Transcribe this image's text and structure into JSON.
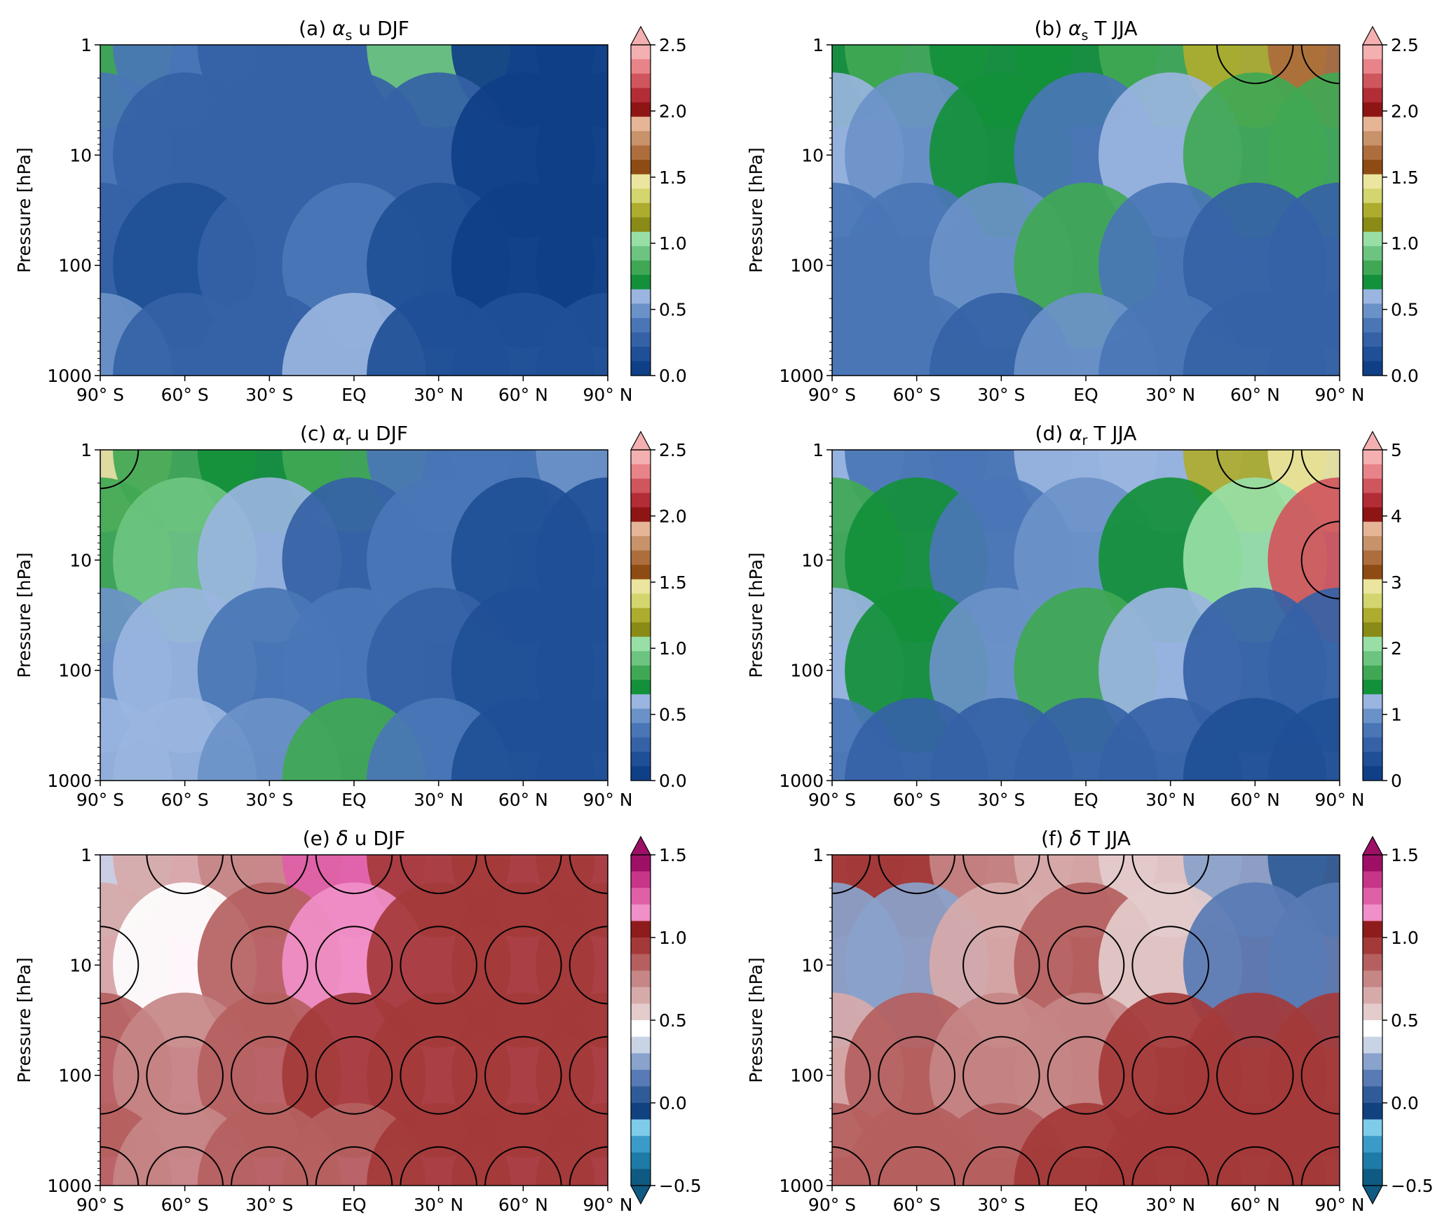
{
  "figure": {
    "panels": [
      {
        "id": "a",
        "title_pre": "(a) ",
        "title_sym": "α",
        "title_sub": "s",
        "title_post": " u DJF",
        "ylabel": "Pressure [hPa]",
        "xticks": [
          "90° S",
          "60° S",
          "30° S",
          "EQ",
          "30° N",
          "60° N",
          "90° N"
        ],
        "yticks": [
          "1",
          "10",
          "100",
          "1000"
        ],
        "colormap": "alpha",
        "cbar_ticks": [
          "2.5",
          "2.0",
          "1.5",
          "1.0",
          "0.5",
          "0.0"
        ],
        "cbar_range": [
          0,
          2.5
        ],
        "cbar_extend": "max"
      },
      {
        "id": "b",
        "title_pre": "(b) ",
        "title_sym": "α",
        "title_sub": "s",
        "title_post": " T JJA",
        "ylabel": "Pressure [hPa]",
        "xticks": [
          "90° S",
          "60° S",
          "30° S",
          "EQ",
          "30° N",
          "60° N",
          "90° N"
        ],
        "yticks": [
          "1",
          "10",
          "100",
          "1000"
        ],
        "colormap": "alpha",
        "cbar_ticks": [
          "2.5",
          "2.0",
          "1.5",
          "1.0",
          "0.5",
          "0.0"
        ],
        "cbar_range": [
          0,
          2.5
        ],
        "cbar_extend": "max"
      },
      {
        "id": "c",
        "title_pre": "(c) ",
        "title_sym": "α",
        "title_sub": "r",
        "title_post": " u DJF",
        "ylabel": "Pressure [hPa]",
        "xticks": [
          "90° S",
          "60° S",
          "30° S",
          "EQ",
          "30° N",
          "60° N",
          "90° N"
        ],
        "yticks": [
          "1",
          "10",
          "100",
          "1000"
        ],
        "colormap": "alpha",
        "cbar_ticks": [
          "2.5",
          "2.0",
          "1.5",
          "1.0",
          "0.5",
          "0.0"
        ],
        "cbar_range": [
          0,
          2.5
        ],
        "cbar_extend": "max"
      },
      {
        "id": "d",
        "title_pre": "(d) ",
        "title_sym": "α",
        "title_sub": "r",
        "title_post": " T JJA",
        "ylabel": "Pressure [hPa]",
        "xticks": [
          "90° S",
          "60° S",
          "30° S",
          "EQ",
          "30° N",
          "60° N",
          "90° N"
        ],
        "yticks": [
          "1",
          "10",
          "100",
          "1000"
        ],
        "colormap": "alpha",
        "cbar_ticks": [
          "5",
          "4",
          "3",
          "2",
          "1",
          "0"
        ],
        "cbar_range": [
          0,
          5
        ],
        "cbar_extend": "max"
      },
      {
        "id": "e",
        "title_pre": "(e) ",
        "title_sym": "δ",
        "title_sub": "",
        "title_post": " u DJF",
        "ylabel": "Pressure [hPa]",
        "xticks": [
          "90° S",
          "60° S",
          "30° S",
          "EQ",
          "30° N",
          "60° N",
          "90° N"
        ],
        "yticks": [
          "1",
          "10",
          "100",
          "1000"
        ],
        "colormap": "delta",
        "cbar_ticks": [
          "1.5",
          "1.0",
          "0.5",
          "0.0",
          "−0.5"
        ],
        "cbar_range": [
          -0.5,
          1.5
        ],
        "cbar_extend": "both"
      },
      {
        "id": "f",
        "title_pre": "(f) ",
        "title_sym": "δ",
        "title_sub": "",
        "title_post": " T JJA",
        "ylabel": "Pressure [hPa]",
        "xticks": [
          "90° S",
          "60° S",
          "30° S",
          "EQ",
          "30° N",
          "60° N",
          "90° N"
        ],
        "yticks": [
          "1",
          "10",
          "100",
          "1000"
        ],
        "colormap": "delta",
        "cbar_ticks": [
          "1.5",
          "1.0",
          "0.5",
          "0.0",
          "−0.5"
        ],
        "cbar_range": [
          -0.5,
          1.5
        ],
        "cbar_extend": "both"
      }
    ],
    "colors": {
      "alpha": [
        "#0f3f87",
        "#1f4f96",
        "#3562a6",
        "#4a76b6",
        "#6b92c8",
        "#9ab5e0",
        "#13903a",
        "#40a854",
        "#6cc480",
        "#98dfa6",
        "#8a8a16",
        "#aeac2e",
        "#d3d56f",
        "#ebe59f",
        "#8f4b14",
        "#ad6d3c",
        "#c8926a",
        "#e5b596",
        "#8f1515",
        "#b32d36",
        "#d0565d",
        "#e88389",
        "#f4b0b0"
      ],
      "delta": [
        "#0f5a82",
        "#1e7aa6",
        "#3a9bc9",
        "#7ecbea",
        "#12417f",
        "#2f5c98",
        "#587bb5",
        "#8aa3cc",
        "#c8d3e6",
        "#ffffff",
        "#e4cccc",
        "#d7aaaa",
        "#c68686",
        "#b55f60",
        "#a43939",
        "#8f1c1c",
        "#f08fc8",
        "#e060a8",
        "#c73589",
        "#9e0f66"
      ]
    }
  },
  "chart_data": [
    {
      "type": "heatmap",
      "panel": "a",
      "title": "(a) αs u DJF",
      "ylabel": "Pressure [hPa]",
      "x": [
        "90° S",
        "60° S",
        "30° S",
        "EQ",
        "30° N",
        "60° N",
        "90° N"
      ],
      "y": [
        1,
        10,
        100,
        1000
      ],
      "yscale": "log",
      "levels": [
        0.0,
        0.5,
        1.0,
        1.5,
        2.0,
        2.5
      ],
      "cbar_ticks": [
        "2.5",
        "2.0",
        "1.5",
        "1.0",
        "0.5",
        "0.0"
      ],
      "values": [
        [
          0.8,
          0.35,
          0.3,
          0.3,
          0.9,
          0.1,
          0.1
        ],
        [
          0.4,
          0.25,
          0.3,
          0.3,
          0.25,
          0.1,
          0.1
        ],
        [
          0.3,
          0.2,
          0.25,
          0.35,
          0.2,
          0.1,
          0.1
        ],
        [
          0.5,
          0.3,
          0.3,
          0.6,
          0.2,
          0.15,
          0.15
        ]
      ]
    },
    {
      "type": "heatmap",
      "panel": "b",
      "title": "(b) αs T JJA",
      "ylabel": "Pressure [hPa]",
      "x": [
        "90° S",
        "60° S",
        "30° S",
        "EQ",
        "30° N",
        "60° N",
        "90° N"
      ],
      "y": [
        1,
        10,
        100,
        1000
      ],
      "yscale": "log",
      "levels": [
        0.0,
        0.5,
        1.0,
        1.5,
        2.0,
        2.5
      ],
      "cbar_ticks": [
        "2.5",
        "2.0",
        "1.5",
        "1.0",
        "0.5",
        "0.0"
      ],
      "values": [
        [
          0.7,
          0.85,
          0.7,
          0.7,
          0.8,
          1.2,
          1.7
        ],
        [
          0.6,
          0.45,
          0.7,
          0.4,
          0.6,
          0.8,
          0.8
        ],
        [
          0.4,
          0.4,
          0.5,
          0.8,
          0.4,
          0.3,
          0.3
        ],
        [
          0.4,
          0.35,
          0.3,
          0.5,
          0.35,
          0.25,
          0.25
        ]
      ]
    },
    {
      "type": "heatmap",
      "panel": "c",
      "title": "(c) αr u DJF",
      "ylabel": "Pressure [hPa]",
      "x": [
        "90° S",
        "60° S",
        "30° S",
        "EQ",
        "30° N",
        "60° N",
        "90° N"
      ],
      "y": [
        1,
        10,
        100,
        1000
      ],
      "yscale": "log",
      "levels": [
        0.0,
        0.5,
        1.0,
        1.5,
        2.0,
        2.5
      ],
      "cbar_ticks": [
        "2.5",
        "2.0",
        "1.5",
        "1.0",
        "0.5",
        "0.0"
      ],
      "values": [
        [
          1.5,
          0.8,
          0.7,
          0.8,
          0.4,
          0.35,
          0.45
        ],
        [
          0.8,
          0.9,
          0.6,
          0.3,
          0.35,
          0.2,
          0.2
        ],
        [
          0.5,
          0.6,
          0.4,
          0.35,
          0.3,
          0.15,
          0.15
        ],
        [
          0.6,
          0.55,
          0.45,
          0.8,
          0.35,
          0.2,
          0.2
        ]
      ]
    },
    {
      "type": "heatmap",
      "panel": "d",
      "title": "(d) αr T JJA",
      "ylabel": "Pressure [hPa]",
      "x": [
        "90° S",
        "60° S",
        "30° S",
        "EQ",
        "30° N",
        "60° N",
        "90° N"
      ],
      "y": [
        1,
        10,
        100,
        1000
      ],
      "yscale": "log",
      "levels": [
        0,
        1,
        2,
        3,
        4,
        5
      ],
      "cbar_ticks": [
        "5",
        "4",
        "3",
        "2",
        "1",
        "0"
      ],
      "values": [
        [
          1.2,
          0.8,
          0.8,
          1.1,
          1.2,
          2.5,
          3.0
        ],
        [
          1.6,
          1.4,
          0.7,
          0.9,
          1.5,
          2.0,
          4.5
        ],
        [
          1.2,
          1.4,
          1.0,
          1.7,
          1.1,
          0.5,
          0.5
        ],
        [
          0.7,
          0.6,
          0.5,
          0.6,
          0.5,
          0.3,
          0.4
        ]
      ]
    },
    {
      "type": "heatmap",
      "panel": "e",
      "title": "(e) δ u DJF",
      "ylabel": "Pressure [hPa]",
      "x": [
        "90° S",
        "60° S",
        "30° S",
        "EQ",
        "30° N",
        "60° N",
        "90° N"
      ],
      "y": [
        1,
        10,
        100,
        1000
      ],
      "yscale": "log",
      "levels": [
        -0.5,
        0.0,
        0.5,
        1.0,
        1.5
      ],
      "cbar_ticks": [
        "1.5",
        "1.0",
        "0.5",
        "0.0",
        "−0.5"
      ],
      "values": [
        [
          0.3,
          0.6,
          0.7,
          1.2,
          0.95,
          0.95,
          0.95
        ],
        [
          0.6,
          0.4,
          0.8,
          1.1,
          0.95,
          0.95,
          0.95
        ],
        [
          0.8,
          0.7,
          0.8,
          0.95,
          0.95,
          0.95,
          0.95
        ],
        [
          0.8,
          0.75,
          0.8,
          0.8,
          0.95,
          0.95,
          0.95
        ]
      ]
    },
    {
      "type": "heatmap",
      "panel": "f",
      "title": "(f) δ T JJA",
      "ylabel": "Pressure [hPa]",
      "x": [
        "90° S",
        "60° S",
        "30° S",
        "EQ",
        "30° N",
        "60° N",
        "90° N"
      ],
      "y": [
        1,
        10,
        100,
        1000
      ],
      "yscale": "log",
      "levels": [
        -0.5,
        0.0,
        0.5,
        1.0,
        1.5
      ],
      "cbar_ticks": [
        "1.5",
        "1.0",
        "0.5",
        "0.0",
        "−0.5"
      ],
      "values": [
        [
          0.9,
          0.95,
          0.7,
          0.6,
          0.5,
          0.2,
          0.0
        ],
        [
          0.2,
          0.2,
          0.6,
          0.8,
          0.5,
          0.1,
          0.1
        ],
        [
          0.6,
          0.8,
          0.7,
          0.7,
          0.9,
          0.95,
          0.95
        ],
        [
          0.85,
          0.8,
          0.85,
          0.9,
          0.95,
          0.95,
          0.95
        ]
      ]
    }
  ]
}
